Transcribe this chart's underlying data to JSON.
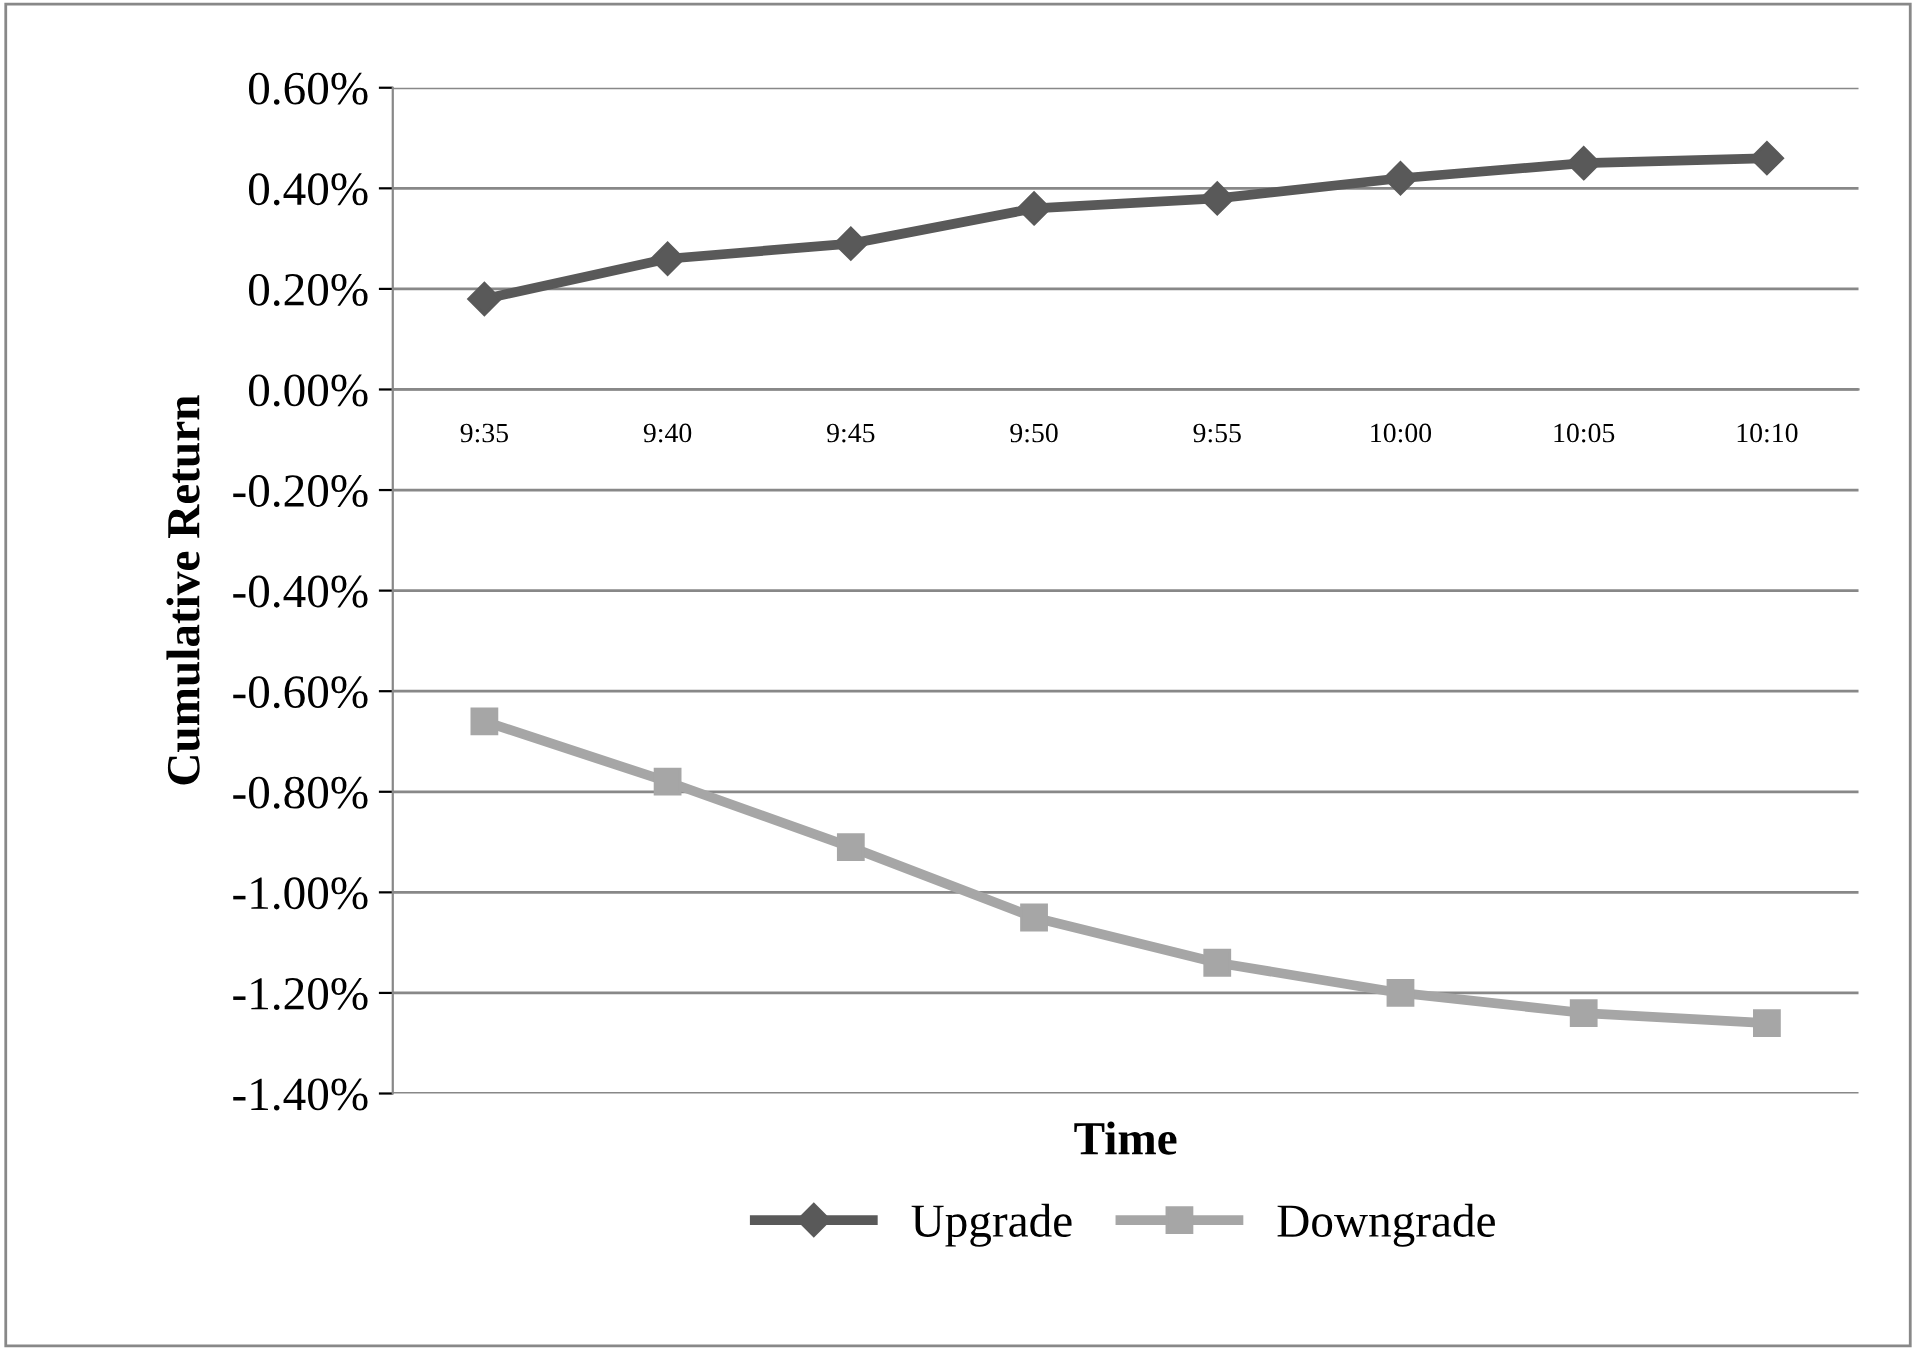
{
  "chart_data": {
    "type": "line",
    "xlabel": "Time",
    "ylabel": "Cumulative Return",
    "categories": [
      "9:35",
      "9:40",
      "9:45",
      "9:50",
      "9:55",
      "10:00",
      "10:05",
      "10:10"
    ],
    "series": [
      {
        "name": "Upgrade",
        "color": "#595959",
        "marker": "diamond",
        "values": [
          0.18,
          0.26,
          0.29,
          0.36,
          0.38,
          0.42,
          0.45,
          0.46
        ]
      },
      {
        "name": "Downgrade",
        "color": "#a6a6a6",
        "marker": "square",
        "values": [
          -0.66,
          -0.78,
          -0.91,
          -1.05,
          -1.14,
          -1.2,
          -1.24,
          -1.26
        ]
      }
    ],
    "ylim": [
      -1.4,
      0.6
    ],
    "yticks": [
      {
        "value": -1.4,
        "label": "-1.40%"
      },
      {
        "value": -1.2,
        "label": "-1.20%"
      },
      {
        "value": -1.0,
        "label": "-1.00%"
      },
      {
        "value": -0.8,
        "label": "-0.80%"
      },
      {
        "value": -0.6,
        "label": "-0.60%"
      },
      {
        "value": -0.4,
        "label": "-0.40%"
      },
      {
        "value": -0.2,
        "label": "-0.20%"
      },
      {
        "value": 0,
        "label": "0.00%"
      },
      {
        "value": 0.2,
        "label": "0.20%"
      },
      {
        "value": 0.4,
        "label": "0.40%"
      },
      {
        "value": 0.6,
        "label": "0.60%"
      }
    ],
    "grid": "y",
    "legend": "bottom",
    "line_style": "solid"
  }
}
